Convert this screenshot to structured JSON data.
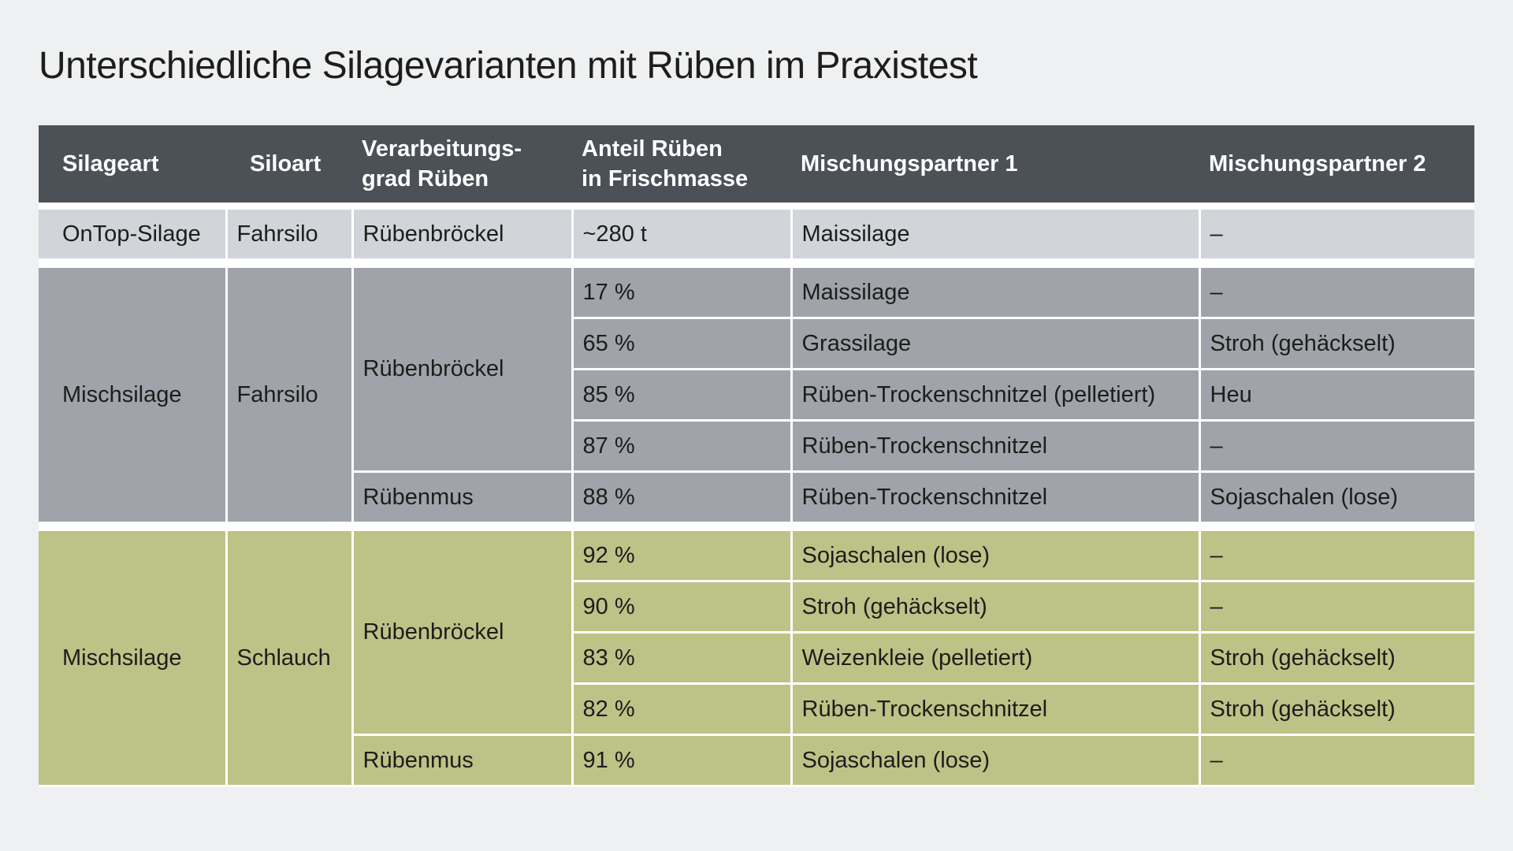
{
  "title": "Unterschiedliche Silagevarianten mit Rüben im Praxistest",
  "table": {
    "headers": [
      "Silageart",
      "Siloart",
      "Verarbeitungs-\ngrad Rüben",
      "Anteil Rüben\nin Frischmasse",
      "Mischungspartner 1",
      "Mischungspartner 2"
    ],
    "group1": {
      "silageart": "OnTop-Silage",
      "siloart": "Fahrsilo",
      "rows": [
        {
          "grad": "Rübenbröckel",
          "anteil": "~280 t",
          "partner1": "Maissilage",
          "partner2": "–"
        }
      ]
    },
    "group2": {
      "silageart": "Mischsilage",
      "siloart": "Fahrsilo",
      "grad_a": "Rübenbröckel",
      "grad_b": "Rübenmus",
      "rows": [
        {
          "anteil": "17 %",
          "partner1": "Maissilage",
          "partner2": "–"
        },
        {
          "anteil": "65 %",
          "partner1": "Grassilage",
          "partner2": "Stroh (gehäckselt)"
        },
        {
          "anteil": "85 %",
          "partner1": "Rüben-Trockenschnitzel (pelletiert)",
          "partner2": "Heu"
        },
        {
          "anteil": "87 %",
          "partner1": "Rüben-Trockenschnitzel",
          "partner2": "–"
        },
        {
          "anteil": "88 %",
          "partner1": "Rüben-Trockenschnitzel",
          "partner2": "Sojaschalen (lose)"
        }
      ]
    },
    "group3": {
      "silageart": "Mischsilage",
      "siloart": "Schlauch",
      "grad_a": "Rübenbröckel",
      "grad_b": "Rübenmus",
      "rows": [
        {
          "anteil": "92 %",
          "partner1": "Sojaschalen (lose)",
          "partner2": "–"
        },
        {
          "anteil": "90 %",
          "partner1": "Stroh (gehäckselt)",
          "partner2": "–"
        },
        {
          "anteil": "83 %",
          "partner1": "Weizenkleie (pelletiert)",
          "partner2": "Stroh (gehäckselt)"
        },
        {
          "anteil": "82 %",
          "partner1": "Rüben-Trockenschnitzel",
          "partner2": "Stroh (gehäckselt)"
        },
        {
          "anteil": "91 %",
          "partner1": "Sojaschalen (lose)",
          "partner2": "–"
        }
      ]
    }
  },
  "colors": {
    "background": "#eff0f2",
    "header": "#4b5157",
    "group_light_gray": "#d1d4d8",
    "group_mid_gray": "#a0a4aa",
    "group_olive": "#bdc387"
  }
}
